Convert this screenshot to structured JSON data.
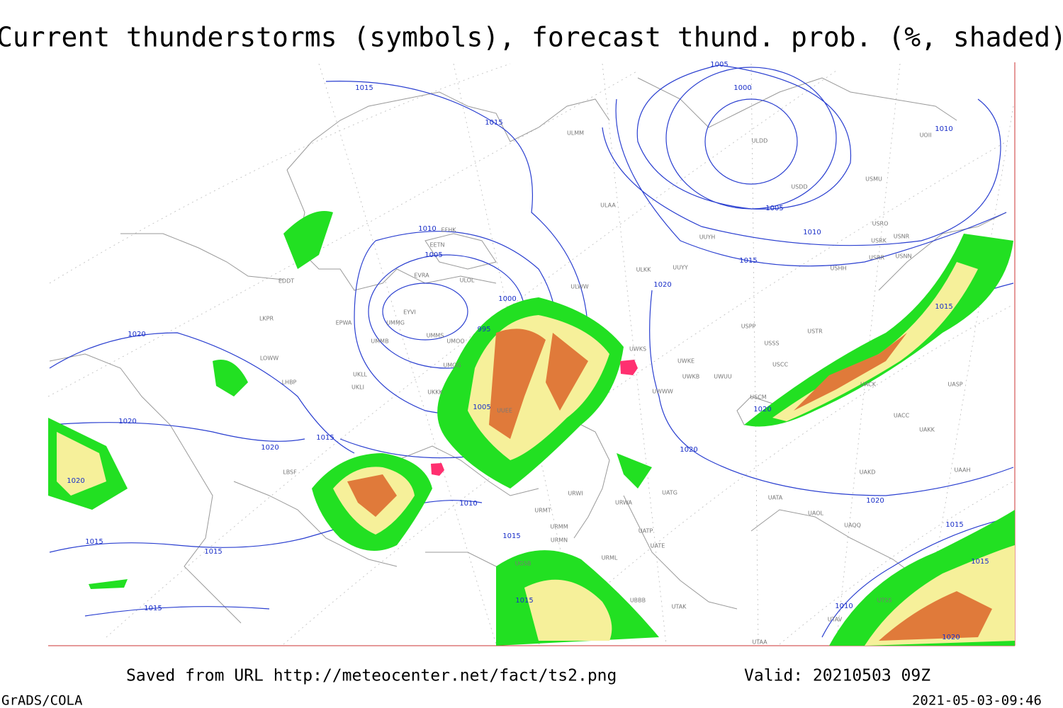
{
  "header": {
    "title": "Current thunderstorms (symbols), forecast thund. prob. (%, shaded)"
  },
  "map": {
    "isobar_labels": [
      1015,
      1015,
      1005,
      1000,
      1010,
      1005,
      1010,
      1015,
      1010,
      1005,
      1000,
      995,
      1020,
      1015,
      1005,
      1020,
      1020,
      1020,
      1015,
      1020,
      1020,
      1010,
      1020,
      1015,
      1015,
      1015,
      1015,
      1015,
      1015,
      1015,
      1010,
      1020,
      1020
    ],
    "stations": [
      "ULMM",
      "ULAA",
      "ULDD",
      "USDD",
      "USMU",
      "UOII",
      "UUYH",
      "ULKK",
      "UUYY",
      "ULWW",
      "UWKS",
      "UWKE",
      "UWKB",
      "UWUU",
      "UWWW",
      "USPP",
      "USSS",
      "USCC",
      "USTR",
      "USCM",
      "USHH",
      "USRO",
      "USRK",
      "USNR",
      "USRR",
      "USNN",
      "UACK",
      "UASP",
      "UACC",
      "UAKK",
      "UAKD",
      "UAAH",
      "UATA",
      "UAOL",
      "UAQQ",
      "UATG",
      "UATP",
      "UATE",
      "URWA",
      "URWI",
      "URMT",
      "URMM",
      "URMN",
      "URML",
      "UBBB",
      "UTAK",
      "UTAA",
      "UTSS",
      "UTAV",
      "UGSB",
      "UKKK",
      "UKLL",
      "UKLI",
      "UMGG",
      "UMMS",
      "UMOO",
      "UMMB",
      "UMMG",
      "EYVI",
      "EVRA",
      "EETN",
      "EFHK",
      "ULOL",
      "UUEE",
      "EDDT",
      "LKPR",
      "LOWW",
      "LHBP",
      "LBSF",
      "EPWA"
    ]
  },
  "footer": {
    "source": "Saved from URL http://meteocenter.net/fact/ts2.png",
    "valid": "Valid: 20210503 09Z",
    "software": "GrADS/COLA",
    "timestamp": "2021-05-03-09:46"
  }
}
